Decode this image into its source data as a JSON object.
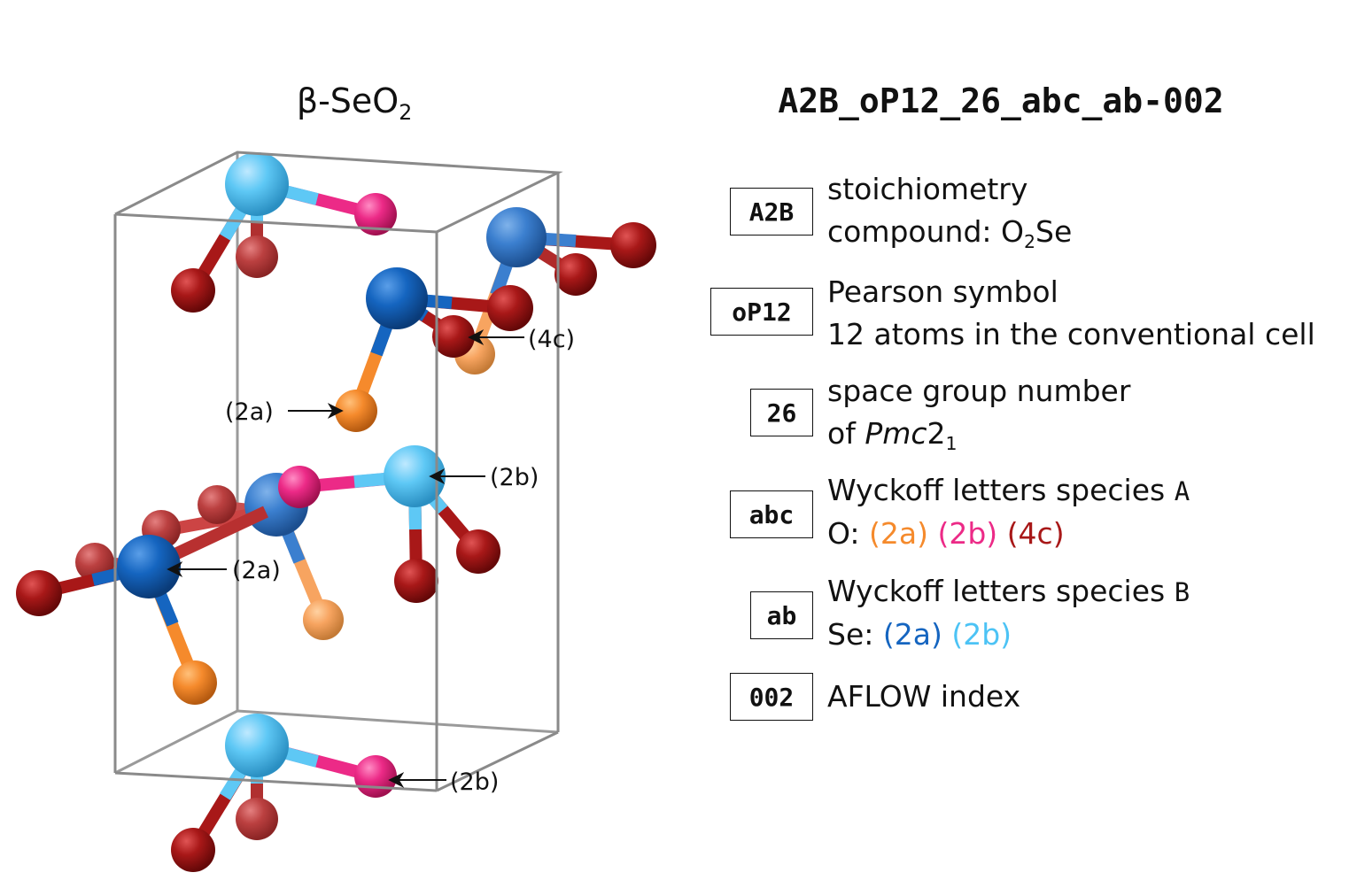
{
  "left_title": {
    "prefix": "β-SeO",
    "sub": "2"
  },
  "right_title": "A2B_oP12_26_abc_ab-002",
  "colors": {
    "O_2a": "#f58a2c",
    "O_2b": "#ec2a87",
    "O_4c": "#a81818",
    "Se_2a": "#1565c0",
    "Se_2b": "#4cc3f5",
    "cell_edge": "#888888"
  },
  "legend": [
    {
      "code": "A2B",
      "line1": "stoichiometry",
      "line2_prefix": "compound: ",
      "line2_formula_a": "O",
      "line2_formula_sub": "2",
      "line2_formula_b": "Se"
    },
    {
      "code": "oP12",
      "line1": "Pearson symbol",
      "line2": "12 atoms in the conventional cell"
    },
    {
      "code": "26",
      "line1": "space group number",
      "line2_prefix": "of ",
      "line2_italic": "Pmc",
      "line2_tail": "2",
      "line2_sub": "1"
    },
    {
      "code": "abc",
      "line1_prefix": "Wyckoff letters species ",
      "line1_mono": "A",
      "line2_prefix": "O: ",
      "w1": "(2a)",
      "w2": "(2b)",
      "w3": "(4c)"
    },
    {
      "code": "ab",
      "line1_prefix": "Wyckoff letters species ",
      "line1_mono": "B",
      "line2_prefix": "Se: ",
      "w1": "(2a)",
      "w2": "(2b)"
    },
    {
      "code": "002",
      "line1": "AFLOW index"
    }
  ],
  "atom_labels": {
    "o4c": "(4c)",
    "o2a": "(2a)",
    "se2b": "(2b)",
    "se2a": "(2a)",
    "o2b": "(2b)"
  }
}
